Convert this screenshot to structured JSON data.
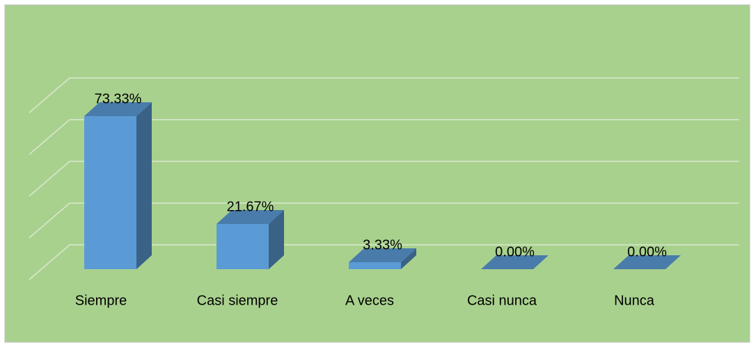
{
  "chart_data": {
    "type": "bar3d",
    "categories": [
      "Siempre",
      "Casi siempre",
      "A veces",
      "Casi nunca",
      "Nunca"
    ],
    "values": [
      73.33,
      21.67,
      3.33,
      0,
      0
    ],
    "value_labels": [
      "73.33%",
      "21.67%",
      "3.33%",
      "0.00%",
      "0.00%"
    ],
    "color": "#5b9bd5",
    "ylim": [
      0,
      80
    ],
    "yticks": [
      0,
      20,
      40,
      60,
      80
    ],
    "grid": true
  }
}
